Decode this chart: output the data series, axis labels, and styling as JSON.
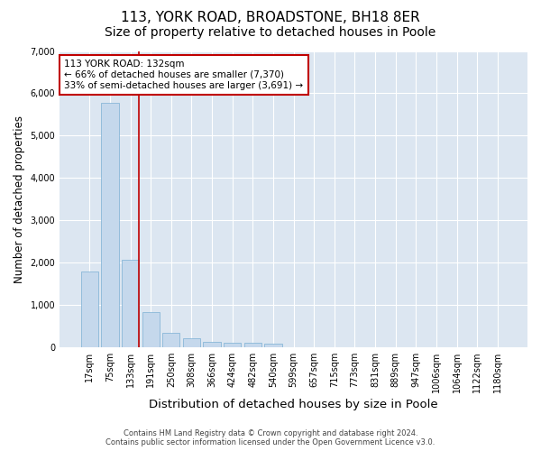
{
  "title1": "113, YORK ROAD, BROADSTONE, BH18 8ER",
  "title2": "Size of property relative to detached houses in Poole",
  "xlabel": "Distribution of detached houses by size in Poole",
  "ylabel": "Number of detached properties",
  "categories": [
    "17sqm",
    "75sqm",
    "133sqm",
    "191sqm",
    "250sqm",
    "308sqm",
    "366sqm",
    "424sqm",
    "482sqm",
    "540sqm",
    "599sqm",
    "657sqm",
    "715sqm",
    "773sqm",
    "831sqm",
    "889sqm",
    "947sqm",
    "1006sqm",
    "1064sqm",
    "1122sqm",
    "1180sqm"
  ],
  "values": [
    1780,
    5780,
    2060,
    820,
    340,
    200,
    120,
    110,
    100,
    80,
    0,
    0,
    0,
    0,
    0,
    0,
    0,
    0,
    0,
    0,
    0
  ],
  "bar_color": "#c5d8ec",
  "bar_edge_color": "#7bafd4",
  "highlight_line_index": 2,
  "highlight_color": "#c00000",
  "annotation_line1": "113 YORK ROAD: 132sqm",
  "annotation_line2": "← 66% of detached houses are smaller (7,370)",
  "annotation_line3": "33% of semi-detached houses are larger (3,691) →",
  "annotation_box_color": "#ffffff",
  "annotation_box_edge": "#c00000",
  "ylim": [
    0,
    7000
  ],
  "yticks": [
    0,
    1000,
    2000,
    3000,
    4000,
    5000,
    6000,
    7000
  ],
  "plot_bg_color": "#dce6f1",
  "grid_color": "#ffffff",
  "fig_bg_color": "#ffffff",
  "footer_line1": "Contains HM Land Registry data © Crown copyright and database right 2024.",
  "footer_line2": "Contains public sector information licensed under the Open Government Licence v3.0.",
  "title_fontsize": 11,
  "subtitle_fontsize": 10,
  "tick_fontsize": 7,
  "ylabel_fontsize": 8.5,
  "xlabel_fontsize": 9.5,
  "annotation_fontsize": 7.5,
  "footer_fontsize": 6
}
